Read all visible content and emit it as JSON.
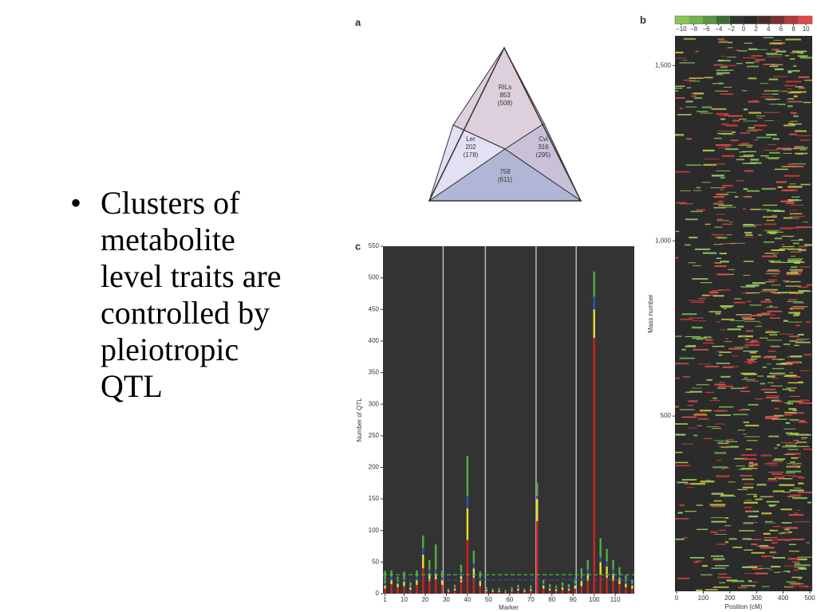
{
  "slide": {
    "bullets": [
      "Clusters of metabolite level traits are controlled by pleiotropic QTL"
    ]
  },
  "diagram": {
    "label": "a",
    "regions": [
      {
        "name": "RILs",
        "lines": [
          "853",
          "(508)"
        ]
      },
      {
        "name": "Ler",
        "lines": [
          "202",
          "(178)"
        ]
      },
      {
        "name": "Cvi",
        "lines": [
          "316",
          "(295)"
        ]
      },
      {
        "name": null,
        "lines": [
          "758",
          "(611)"
        ]
      }
    ]
  },
  "chart_data": [
    {
      "type": "stacked-bar",
      "label": "c",
      "x_label": "Marker",
      "y_label": "Number of QTL",
      "x": [
        1,
        4,
        7,
        10,
        13,
        16,
        19,
        22,
        25,
        28,
        31,
        34,
        37,
        40,
        43,
        46,
        49,
        52,
        55,
        58,
        61,
        64,
        67,
        70,
        73,
        76,
        79,
        82,
        85,
        88,
        91,
        94,
        97,
        100,
        103,
        106,
        109,
        112,
        115,
        118
      ],
      "series": [
        {
          "color": "#d42020",
          "values": [
            8,
            15,
            10,
            12,
            6,
            14,
            40,
            20,
            22,
            14,
            3,
            5,
            18,
            85,
            25,
            12,
            4,
            3,
            3,
            2,
            4,
            5,
            3,
            4,
            115,
            8,
            5,
            4,
            6,
            5,
            8,
            12,
            20,
            405,
            30,
            25,
            20,
            15,
            10,
            8
          ]
        },
        {
          "color": "#e8e030",
          "values": [
            5,
            8,
            6,
            7,
            4,
            8,
            22,
            12,
            10,
            8,
            2,
            3,
            10,
            50,
            15,
            8,
            2,
            2,
            2,
            1,
            2,
            3,
            2,
            3,
            35,
            5,
            3,
            3,
            4,
            3,
            5,
            8,
            12,
            45,
            20,
            18,
            12,
            10,
            6,
            5
          ]
        },
        {
          "color": "#3050c0",
          "values": [
            3,
            4,
            3,
            4,
            2,
            5,
            10,
            6,
            6,
            4,
            1,
            2,
            6,
            20,
            8,
            5,
            1,
            1,
            1,
            1,
            1,
            2,
            1,
            2,
            5,
            3,
            2,
            2,
            2,
            2,
            3,
            5,
            6,
            20,
            8,
            8,
            6,
            5,
            3,
            3
          ]
        },
        {
          "color": "#50b040",
          "values": [
            20,
            10,
            8,
            12,
            6,
            10,
            20,
            15,
            40,
            10,
            2,
            4,
            12,
            63,
            20,
            10,
            3,
            2,
            3,
            2,
            3,
            4,
            2,
            4,
            20,
            6,
            5,
            4,
            6,
            5,
            8,
            15,
            15,
            40,
            30,
            20,
            15,
            12,
            10,
            6
          ]
        }
      ],
      "xlim": [
        0,
        119
      ],
      "xticks": [
        1,
        10,
        20,
        30,
        40,
        50,
        60,
        70,
        80,
        90,
        100,
        110
      ],
      "ylim": [
        0,
        550
      ],
      "yticks": [
        0,
        50,
        100,
        150,
        200,
        250,
        300,
        350,
        400,
        450,
        500,
        550
      ],
      "separators": [
        28.5,
        48.5,
        72.5,
        91.5
      ],
      "thresholds": [
        {
          "value": 30,
          "color": "#50b040"
        },
        {
          "value": 22,
          "color": "#3050c0"
        }
      ]
    },
    {
      "type": "heatmap",
      "label": "b",
      "x_label": "Position (cM)",
      "y_label": "Mass number",
      "xlim": [
        0,
        500
      ],
      "xticks": [
        0,
        100,
        200,
        300,
        400,
        500
      ],
      "ylim": [
        0,
        1585
      ],
      "yticks": [
        500,
        {
          "value": 1000,
          "label": "1,000"
        },
        {
          "value": 1500,
          "label": "1,500"
        }
      ],
      "colorbar": {
        "clim": [
          -11,
          11
        ],
        "ticks": [
          {
            "value": -10,
            "label": "−10"
          },
          {
            "value": -8,
            "label": "−8"
          },
          {
            "value": -6,
            "label": "−6"
          },
          {
            "value": -4,
            "label": "−4"
          },
          {
            "value": -2,
            "label": "−2"
          },
          0,
          2,
          4,
          6,
          8,
          10
        ],
        "colors": [
          "#8cc45a",
          "#74b24c",
          "#5a9444",
          "#3e6c36",
          "#2c382c",
          "#2a2a2a",
          "#4a2c2c",
          "#7a3030",
          "#b43a3a",
          "#e24848"
        ]
      }
    }
  ]
}
